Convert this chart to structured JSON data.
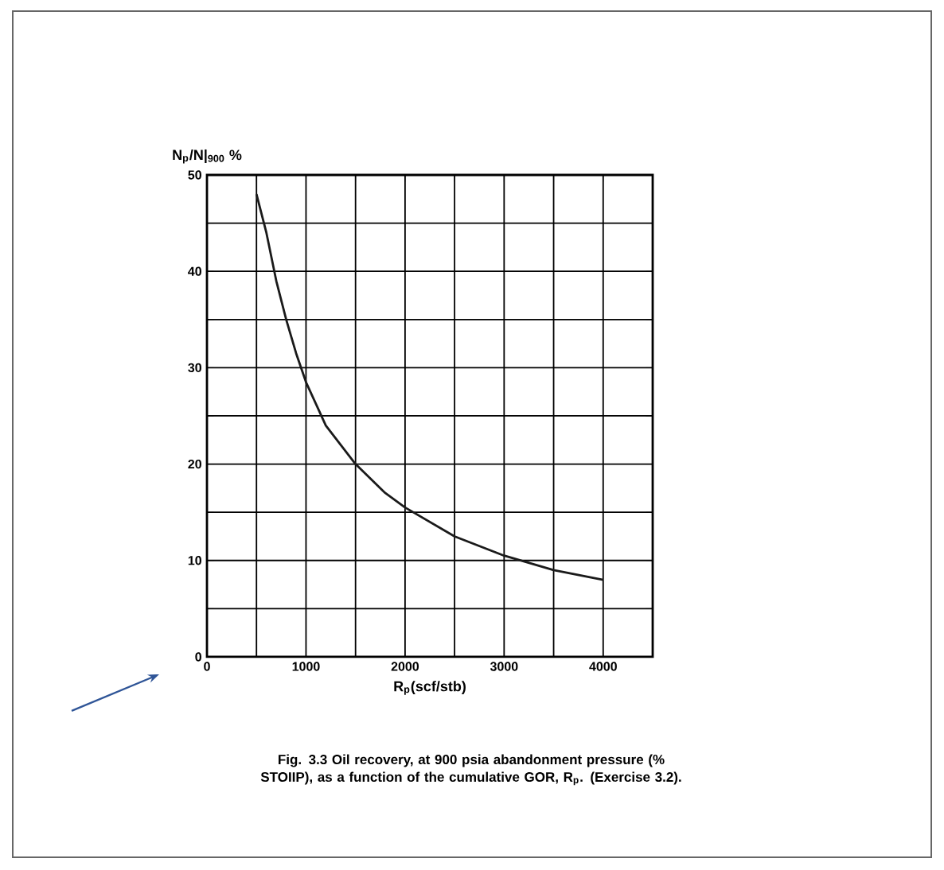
{
  "chart_data": {
    "type": "line",
    "ylabel": "N$_{p}$/N|$_{900}$ %",
    "xlabel": "R$_{p}$(scf/stb)",
    "annotations": [
      "Fig. 3.3 Oil recovery, at 900 psia abandonment pressure (% STOIIP), as a function of the cumulative GOR, R$_{p}$. (Exercise 3.2)."
    ],
    "x": [
      500,
      600,
      700,
      800,
      900,
      1000,
      1200,
      1500,
      1800,
      2000,
      2500,
      3000,
      3500,
      4000
    ],
    "series": [
      {
        "color": "#1a1a1a",
        "values": [
          48,
          44,
          39,
          35,
          31.5,
          28.5,
          24,
          20,
          17,
          15.5,
          12.5,
          10.5,
          9,
          8
        ]
      }
    ],
    "xlim": [
      0,
      4500
    ],
    "ylim": [
      0,
      50
    ],
    "xticks": [
      0,
      {
        "value": 500,
        "label": null
      },
      1000,
      {
        "value": 1500,
        "label": null
      },
      2000,
      {
        "value": 2500,
        "label": null
      },
      3000,
      {
        "value": 3500,
        "label": null
      },
      4000,
      {
        "value": 4500,
        "label": null
      }
    ],
    "yticks": [
      0,
      {
        "value": 5,
        "label": null
      },
      10,
      {
        "value": 15,
        "label": null
      },
      20,
      {
        "value": 25,
        "label": null
      },
      30,
      {
        "value": 35,
        "label": null
      },
      40,
      {
        "value": 45,
        "label": null
      },
      50
    ],
    "grid": true,
    "marker": "none",
    "line_style": "solid"
  }
}
